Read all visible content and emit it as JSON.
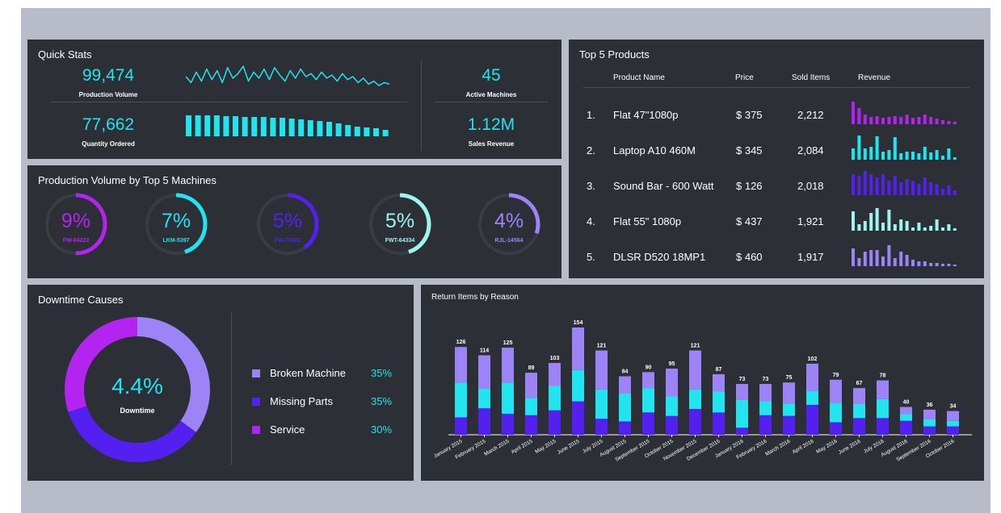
{
  "colors": {
    "cyan": "#22e4ee",
    "purple": "#b324f0",
    "blue": "#5320f0",
    "lavender": "#9d84f6",
    "panel": "#2d2f36"
  },
  "quick_stats": {
    "title": "Quick Stats",
    "production_volume": {
      "value": "99,474",
      "label": "Production Volume"
    },
    "quantity_ordered": {
      "value": "77,662",
      "label": "Quantity Ordered"
    },
    "active_machines": {
      "value": "45",
      "label": "Active Machines"
    },
    "sales_revenue": {
      "value": "1.12M",
      "label": "Sales Revenue"
    },
    "sparkline": [
      7,
      3,
      10,
      4,
      12,
      5,
      11,
      3,
      13,
      6,
      9,
      14,
      4,
      10,
      6,
      12,
      5,
      13,
      8,
      4,
      11,
      6,
      12,
      7,
      9,
      5,
      10,
      6,
      8,
      4,
      9,
      5,
      7,
      3,
      6,
      2,
      4,
      1,
      3,
      2
    ],
    "mini_bars": [
      26,
      26,
      26,
      26,
      25,
      25,
      24,
      24,
      24,
      23,
      23,
      22,
      21,
      20,
      19,
      18,
      16,
      14,
      12,
      11,
      10,
      8
    ]
  },
  "production_by_machine": {
    "title": "Production Volume by Top 5 Machines",
    "machines": [
      {
        "pct": "9%",
        "name": "FW-84223",
        "fill": 0.5,
        "color": "#b324f0"
      },
      {
        "pct": "7%",
        "name": "LKM-5397",
        "fill": 0.45,
        "color": "#22e4ee"
      },
      {
        "pct": "5%",
        "name": "FW-74322",
        "fill": 0.4,
        "color": "#5320f0"
      },
      {
        "pct": "5%",
        "name": "FWT-64334",
        "fill": 0.45,
        "color": "#9ff4f0"
      },
      {
        "pct": "4%",
        "name": "RJL-14564",
        "fill": 0.3,
        "color": "#9d84f6"
      }
    ]
  },
  "top_products": {
    "title": "Top 5 Products",
    "headers": {
      "name": "Product Name",
      "price": "Price",
      "sold": "Sold Items",
      "revenue": "Revenue"
    },
    "rows": [
      {
        "rank": "1.",
        "name": "Flat 47\"1080p",
        "price": "$ 375",
        "sold": "2,212",
        "color": "#b324f0",
        "bars": [
          28,
          20,
          12,
          9,
          10,
          8,
          9,
          10,
          9,
          12,
          8,
          9,
          12,
          9,
          7,
          5,
          4,
          3
        ]
      },
      {
        "rank": "2.",
        "name": "Laptop A10 460M",
        "price": "$ 345",
        "sold": "2,084",
        "color": "#22e4ee",
        "bars": [
          14,
          30,
          14,
          16,
          29,
          10,
          12,
          28,
          8,
          10,
          10,
          8,
          16,
          9,
          12,
          5,
          14,
          3
        ]
      },
      {
        "rank": "3.",
        "name": "Sound Bar - 600 Watt",
        "price": "$ 126",
        "sold": "2,018",
        "color": "#5320f0",
        "bars": [
          26,
          24,
          30,
          26,
          22,
          26,
          18,
          24,
          16,
          20,
          18,
          14,
          22,
          16,
          14,
          8,
          12,
          6
        ]
      },
      {
        "rank": "4.",
        "name": "Flat 55\" 1080p",
        "price": "$ 437",
        "sold": "1,921",
        "color": "#9ff4f0",
        "bars": [
          24,
          8,
          12,
          22,
          28,
          10,
          26,
          8,
          14,
          12,
          4,
          10,
          4,
          6,
          14,
          4,
          8,
          3
        ]
      },
      {
        "rank": "5.",
        "name": "DLSR D520 18MP1",
        "price": "$ 460",
        "sold": "1,917",
        "color": "#9d84f6",
        "bars": [
          22,
          10,
          18,
          20,
          20,
          12,
          26,
          10,
          18,
          14,
          8,
          6,
          6,
          4,
          4,
          3,
          3,
          2
        ]
      }
    ]
  },
  "downtime": {
    "title": "Downtime Causes",
    "value": "4.4%",
    "label": "Downtime",
    "legend": [
      {
        "label": "Broken Machine",
        "pct": "35%",
        "share": 35,
        "color": "#9d84f6"
      },
      {
        "label": "Missing Parts",
        "pct": "35%",
        "share": 35,
        "color": "#5320f0"
      },
      {
        "label": "Service",
        "pct": "30%",
        "share": 30,
        "color": "#b324f0"
      }
    ]
  },
  "chart_data": {
    "type": "bar",
    "title": "Return Items by Reason",
    "stacked": true,
    "categories": [
      "January 2015",
      "February 2015",
      "March 2015",
      "April 2015",
      "May 2015",
      "June 2015",
      "July 2015",
      "August 2015",
      "September 2015",
      "October 2015",
      "November 2015",
      "December 2015",
      "January 2016",
      "February 2016",
      "March 2016",
      "April 2016",
      "May 2016",
      "June 2016",
      "July 2016",
      "August 2016",
      "September 2016",
      "October 2016"
    ],
    "totals": [
      126,
      114,
      125,
      89,
      103,
      154,
      121,
      84,
      90,
      95,
      121,
      87,
      73,
      73,
      75,
      102,
      79,
      67,
      78,
      40,
      36,
      34
    ],
    "series": [
      {
        "values": [
          25,
          38,
          30,
          28,
          35,
          48,
          23,
          19,
          32,
          27,
          37,
          32,
          10,
          28,
          27,
          43,
          18,
          24,
          24,
          20,
          12,
          12
        ],
        "color": "#5320f0"
      },
      {
        "values": [
          50,
          28,
          45,
          25,
          35,
          45,
          42,
          40,
          35,
          28,
          28,
          30,
          40,
          20,
          18,
          20,
          28,
          20,
          27,
          10,
          10,
          8
        ],
        "color": "#22e4ee"
      },
      {
        "values": [
          51,
          48,
          50,
          36,
          33,
          61,
          56,
          25,
          23,
          40,
          56,
          25,
          23,
          25,
          30,
          39,
          33,
          23,
          27,
          10,
          14,
          14
        ],
        "color": "#9d84f6"
      }
    ],
    "ylim": [
      0,
      170
    ],
    "grid": false,
    "legend": "none"
  }
}
